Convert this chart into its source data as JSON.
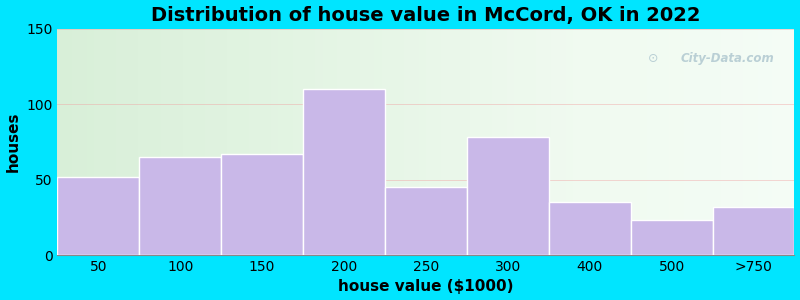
{
  "title": "Distribution of house value in McCord, OK in 2022",
  "xlabel": "house value ($1000)",
  "ylabel": "houses",
  "categories": [
    "50",
    "100",
    "150",
    "200",
    "250",
    "300",
    "400",
    "500",
    ">750"
  ],
  "values": [
    52,
    65,
    67,
    110,
    45,
    78,
    35,
    23,
    32
  ],
  "bar_color": "#c9b8e8",
  "bar_edgecolor": "#ffffff",
  "background_outer": "#00e5ff",
  "ylim": [
    0,
    150
  ],
  "yticks": [
    0,
    50,
    100,
    150
  ],
  "title_fontsize": 14,
  "axis_label_fontsize": 11,
  "tick_fontsize": 10,
  "watermark_text": "City-Data.com",
  "watermark_color": "#b0c8d0",
  "bg_left_color": "#d8efd8",
  "bg_right_color": "#f8fff8"
}
